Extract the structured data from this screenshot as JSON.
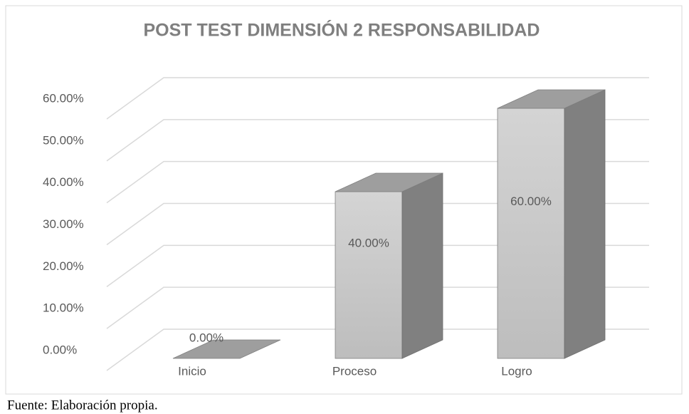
{
  "chart_data": {
    "type": "bar3d",
    "title": "POST TEST DIMENSIÓN 2 RESPONSABILIDAD",
    "categories": [
      "Inicio",
      "Proceso",
      "Logro"
    ],
    "values": [
      0,
      40,
      60
    ],
    "value_labels": [
      "0.00%",
      "40.00%",
      "60.00%"
    ],
    "ylim": [
      0,
      60
    ],
    "yticks": [
      {
        "value": 0,
        "label": "0.00%"
      },
      {
        "value": 10,
        "label": "10.00%"
      },
      {
        "value": 20,
        "label": "20.00%"
      },
      {
        "value": 30,
        "label": "30.00%"
      },
      {
        "value": 40,
        "label": "40.00%"
      },
      {
        "value": 50,
        "label": "50.00%"
      },
      {
        "value": 60,
        "label": "60.00%"
      }
    ],
    "grid": true,
    "color": "#c8c8c8"
  },
  "footer": "Fuente: Elaboración propia."
}
